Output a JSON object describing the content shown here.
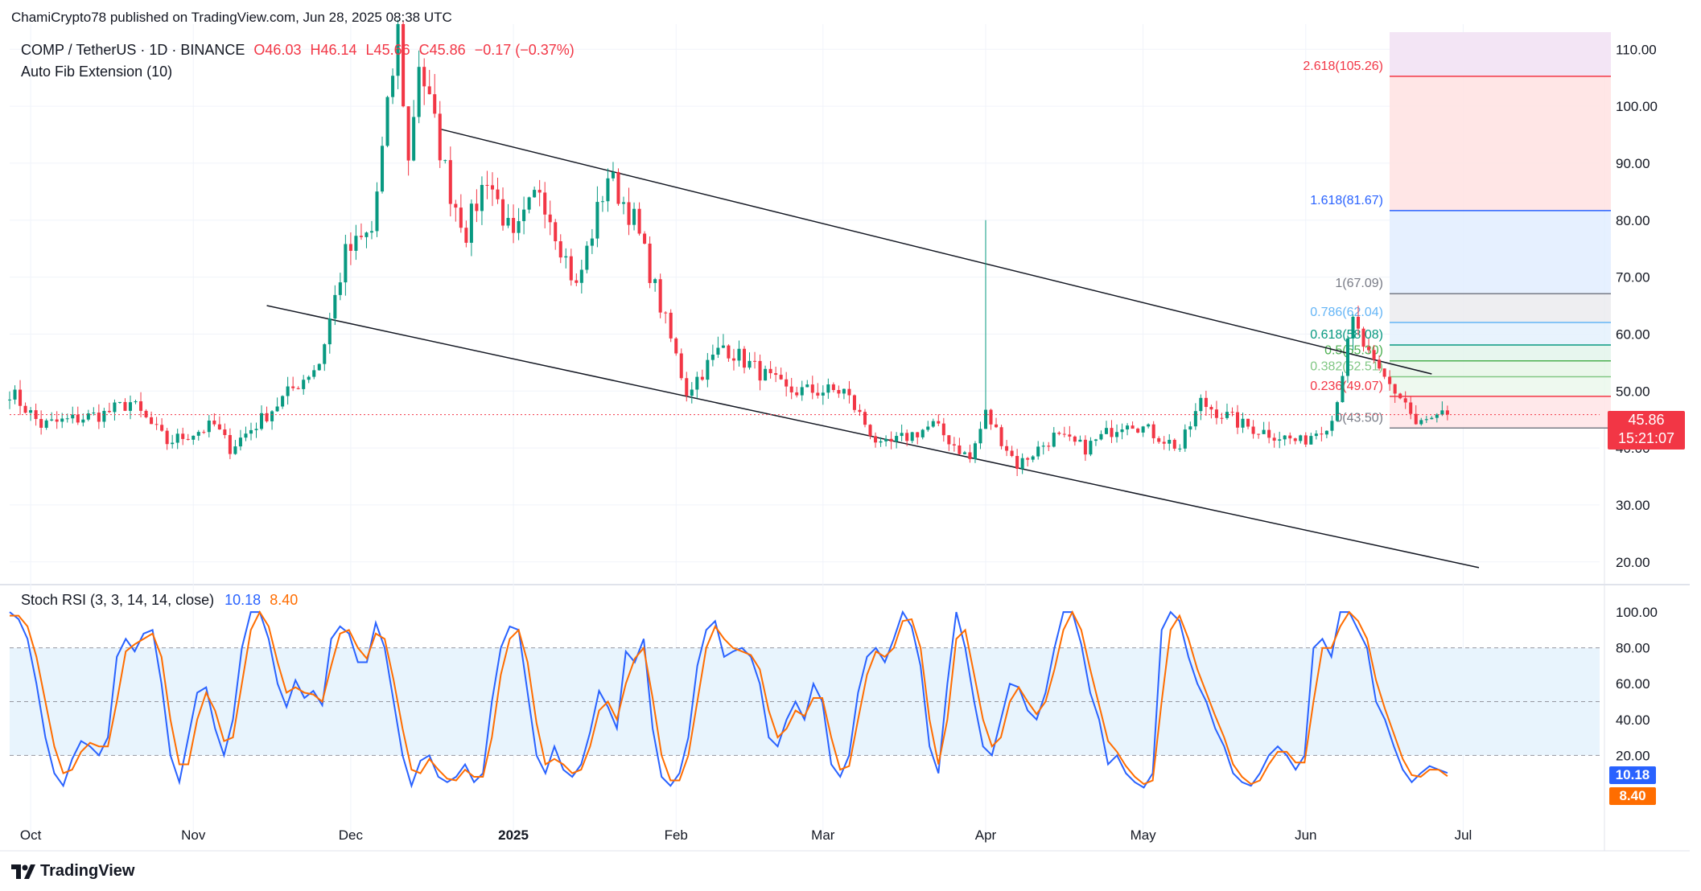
{
  "header": {
    "publisher": "ChamiCrypto78 published on TradingView.com, Jun 28, 2025 08:38 UTC"
  },
  "legend": {
    "symbol": "COMP / TetherUS · 1D · BINANCE",
    "open": "O46.03",
    "high": "H46.14",
    "low": "L45.66",
    "close": "C45.86",
    "change": "−0.17 (−0.37%)",
    "indicator": "Auto Fib Extension (10)"
  },
  "rsi_legend": {
    "name": "Stoch RSI (3, 3, 14, 14, close)",
    "k": "10.18",
    "d": "8.40"
  },
  "price_label": {
    "price": "45.86",
    "countdown": "15:21:07"
  },
  "rsi_labels": {
    "k": "10.18",
    "d": "8.40"
  },
  "footer": {
    "brand": "TradingView"
  },
  "colors": {
    "up": "#089981",
    "down": "#f23645",
    "k_line": "#2962ff",
    "d_line": "#ff6d00",
    "fib_2618": "#f23645",
    "fib_1618": "#2962ff",
    "fib_1": "#787b86",
    "fib_0786": "#64b5f6",
    "fib_0618": "#089981",
    "fib_05": "#4caf50",
    "fib_0382": "#81c784",
    "fib_0236": "#f23645",
    "fib_0": "#787b86"
  },
  "chart_data": [
    {
      "type": "candlestick",
      "title": "COMP / TetherUS · 1D · BINANCE",
      "y_axis": {
        "ticks": [
          "110.00",
          "100.00",
          "90.00",
          "80.00",
          "70.00",
          "60.00",
          "50.00",
          "40.00",
          "30.00",
          "20.00"
        ],
        "range": [
          17,
          113
        ]
      },
      "x_axis": {
        "ticks": [
          "Oct",
          "Nov",
          "Dec",
          "2025",
          "Feb",
          "Mar",
          "Apr",
          "May",
          "Jun",
          "Jul"
        ],
        "range": [
          "2024-09-27",
          "2025-07-27"
        ]
      },
      "key_points": [
        {
          "date": "2024-09-27",
          "close": 50
        },
        {
          "date": "2024-10-03",
          "close": 44
        },
        {
          "date": "2024-10-15",
          "close": 46
        },
        {
          "date": "2024-10-20",
          "close": 48
        },
        {
          "date": "2024-10-27",
          "close": 41
        },
        {
          "date": "2024-11-05",
          "close": 44
        },
        {
          "date": "2024-11-08",
          "close": 40
        },
        {
          "date": "2024-11-14",
          "close": 45
        },
        {
          "date": "2024-11-25",
          "close": 55
        },
        {
          "date": "2024-11-30",
          "close": 74
        },
        {
          "date": "2024-12-05",
          "close": 78
        },
        {
          "date": "2024-12-10",
          "close": 113
        },
        {
          "date": "2024-12-12",
          "close": 90
        },
        {
          "date": "2024-12-14",
          "close": 108
        },
        {
          "date": "2024-12-20",
          "close": 85
        },
        {
          "date": "2024-12-23",
          "close": 78
        },
        {
          "date": "2024-12-27",
          "close": 88
        },
        {
          "date": "2025-01-01",
          "close": 76
        },
        {
          "date": "2025-01-06",
          "close": 86
        },
        {
          "date": "2025-01-13",
          "close": 68
        },
        {
          "date": "2025-01-19",
          "close": 88
        },
        {
          "date": "2025-01-24",
          "close": 80
        },
        {
          "date": "2025-02-03",
          "close": 50
        },
        {
          "date": "2025-02-10",
          "close": 58
        },
        {
          "date": "2025-02-22",
          "close": 50
        },
        {
          "date": "2025-03-05",
          "close": 50
        },
        {
          "date": "2025-03-12",
          "close": 40
        },
        {
          "date": "2025-03-22",
          "close": 44
        },
        {
          "date": "2025-03-29",
          "close": 38
        },
        {
          "date": "2025-04-01",
          "close": 46
        },
        {
          "date": "2025-04-07",
          "close": 37
        },
        {
          "date": "2025-04-14",
          "close": 42
        },
        {
          "date": "2025-04-20",
          "close": 40
        },
        {
          "date": "2025-04-28",
          "close": 45
        },
        {
          "date": "2025-05-08",
          "close": 40
        },
        {
          "date": "2025-05-12",
          "close": 48
        },
        {
          "date": "2025-05-20",
          "close": 44
        },
        {
          "date": "2025-05-31",
          "close": 41
        },
        {
          "date": "2025-06-06",
          "close": 45
        },
        {
          "date": "2025-06-10",
          "close": 62
        },
        {
          "date": "2025-06-14",
          "close": 54
        },
        {
          "date": "2025-06-20",
          "close": 48
        },
        {
          "date": "2025-06-22",
          "close": 44
        },
        {
          "date": "2025-06-28",
          "close": 45.86
        }
      ],
      "trend_lines": [
        {
          "from": [
            "2024-12-18",
            96
          ],
          "to": [
            "2025-06-25",
            53
          ]
        },
        {
          "from": [
            "2024-11-15",
            65
          ],
          "to": [
            "2025-07-04",
            19
          ]
        }
      ],
      "fib_levels": [
        {
          "level": "2.618",
          "value": 105.26,
          "label": "2.618(105.26)"
        },
        {
          "level": "1.618",
          "value": 81.67,
          "label": "1.618(81.67)"
        },
        {
          "level": "1",
          "value": 67.09,
          "label": "1(67.09)"
        },
        {
          "level": "0.786",
          "value": 62.04,
          "label": "0.786(62.04)"
        },
        {
          "level": "0.618",
          "value": 58.08,
          "label": "0.618(58.08)"
        },
        {
          "level": "0.5",
          "value": 55.3,
          "label": "0.5(55.30)"
        },
        {
          "level": "0.382",
          "value": 52.51,
          "label": "0.382(52.51)"
        },
        {
          "level": "0.236",
          "value": 49.07,
          "label": "0.236(49.07)"
        },
        {
          "level": "0",
          "value": 43.5,
          "label": "0(43.50)"
        }
      ],
      "last_price": 45.86
    },
    {
      "type": "line",
      "title": "Stoch RSI (3, 3, 14, 14, close)",
      "y_axis": {
        "ticks": [
          "100.00",
          "80.00",
          "60.00",
          "40.00",
          "20.00"
        ],
        "range": [
          -5,
          105
        ],
        "bands": [
          20,
          50,
          80
        ]
      },
      "series": [
        {
          "name": "K",
          "values": [
            100,
            96,
            85,
            60,
            30,
            10,
            3,
            18,
            28,
            25,
            20,
            30,
            75,
            85,
            78,
            88,
            90,
            60,
            20,
            5,
            30,
            55,
            58,
            35,
            20,
            40,
            80,
            100,
            100,
            85,
            60,
            47,
            62,
            52,
            56,
            48,
            85,
            92,
            88,
            72,
            72,
            94,
            80,
            50,
            20,
            3,
            17,
            20,
            8,
            5,
            8,
            15,
            5,
            10,
            50,
            80,
            92,
            90,
            55,
            20,
            10,
            25,
            12,
            8,
            15,
            33,
            56,
            47,
            35,
            78,
            72,
            85,
            35,
            8,
            3,
            10,
            30,
            70,
            90,
            95,
            75,
            78,
            80,
            75,
            60,
            30,
            25,
            40,
            50,
            40,
            60,
            50,
            15,
            8,
            20,
            55,
            75,
            80,
            72,
            85,
            100,
            92,
            70,
            25,
            10,
            60,
            100,
            80,
            50,
            25,
            20,
            40,
            60,
            58,
            45,
            40,
            55,
            80,
            100,
            100,
            82,
            55,
            40,
            15,
            20,
            10,
            5,
            2,
            10,
            90,
            100,
            95,
            75,
            60,
            50,
            35,
            25,
            10,
            5,
            3,
            10,
            20,
            25,
            20,
            12,
            20,
            80,
            85,
            75,
            100,
            100,
            90,
            80,
            50,
            40,
            25,
            12,
            5,
            10,
            14,
            12,
            10.18
          ]
        },
        {
          "name": "D",
          "values": [
            98,
            98,
            92,
            75,
            50,
            25,
            10,
            12,
            22,
            27,
            25,
            25,
            50,
            78,
            82,
            85,
            88,
            75,
            40,
            15,
            15,
            40,
            55,
            45,
            28,
            30,
            60,
            90,
            100,
            92,
            72,
            55,
            58,
            55,
            54,
            50,
            70,
            88,
            90,
            80,
            74,
            88,
            85,
            62,
            35,
            12,
            10,
            18,
            12,
            7,
            6,
            12,
            8,
            8,
            30,
            65,
            85,
            90,
            72,
            38,
            15,
            18,
            15,
            10,
            12,
            25,
            45,
            50,
            40,
            60,
            74,
            80,
            52,
            20,
            6,
            6,
            20,
            50,
            80,
            92,
            85,
            80,
            78,
            76,
            68,
            45,
            30,
            35,
            45,
            42,
            52,
            52,
            30,
            12,
            14,
            40,
            65,
            78,
            75,
            80,
            95,
            96,
            80,
            40,
            15,
            40,
            85,
            90,
            65,
            40,
            25,
            30,
            50,
            58,
            50,
            43,
            50,
            68,
            90,
            100,
            90,
            68,
            48,
            28,
            22,
            14,
            8,
            4,
            6,
            50,
            90,
            98,
            85,
            68,
            55,
            42,
            30,
            15,
            8,
            4,
            6,
            15,
            22,
            22,
            16,
            16,
            50,
            80,
            80,
            92,
            100,
            95,
            85,
            62,
            46,
            32,
            18,
            9,
            8,
            12,
            12,
            8.4
          ]
        }
      ],
      "x_axis": {
        "ticks": [
          "Oct",
          "Nov",
          "Dec",
          "2025",
          "Feb",
          "Mar",
          "Apr",
          "May",
          "Jun",
          "Jul"
        ]
      }
    }
  ]
}
